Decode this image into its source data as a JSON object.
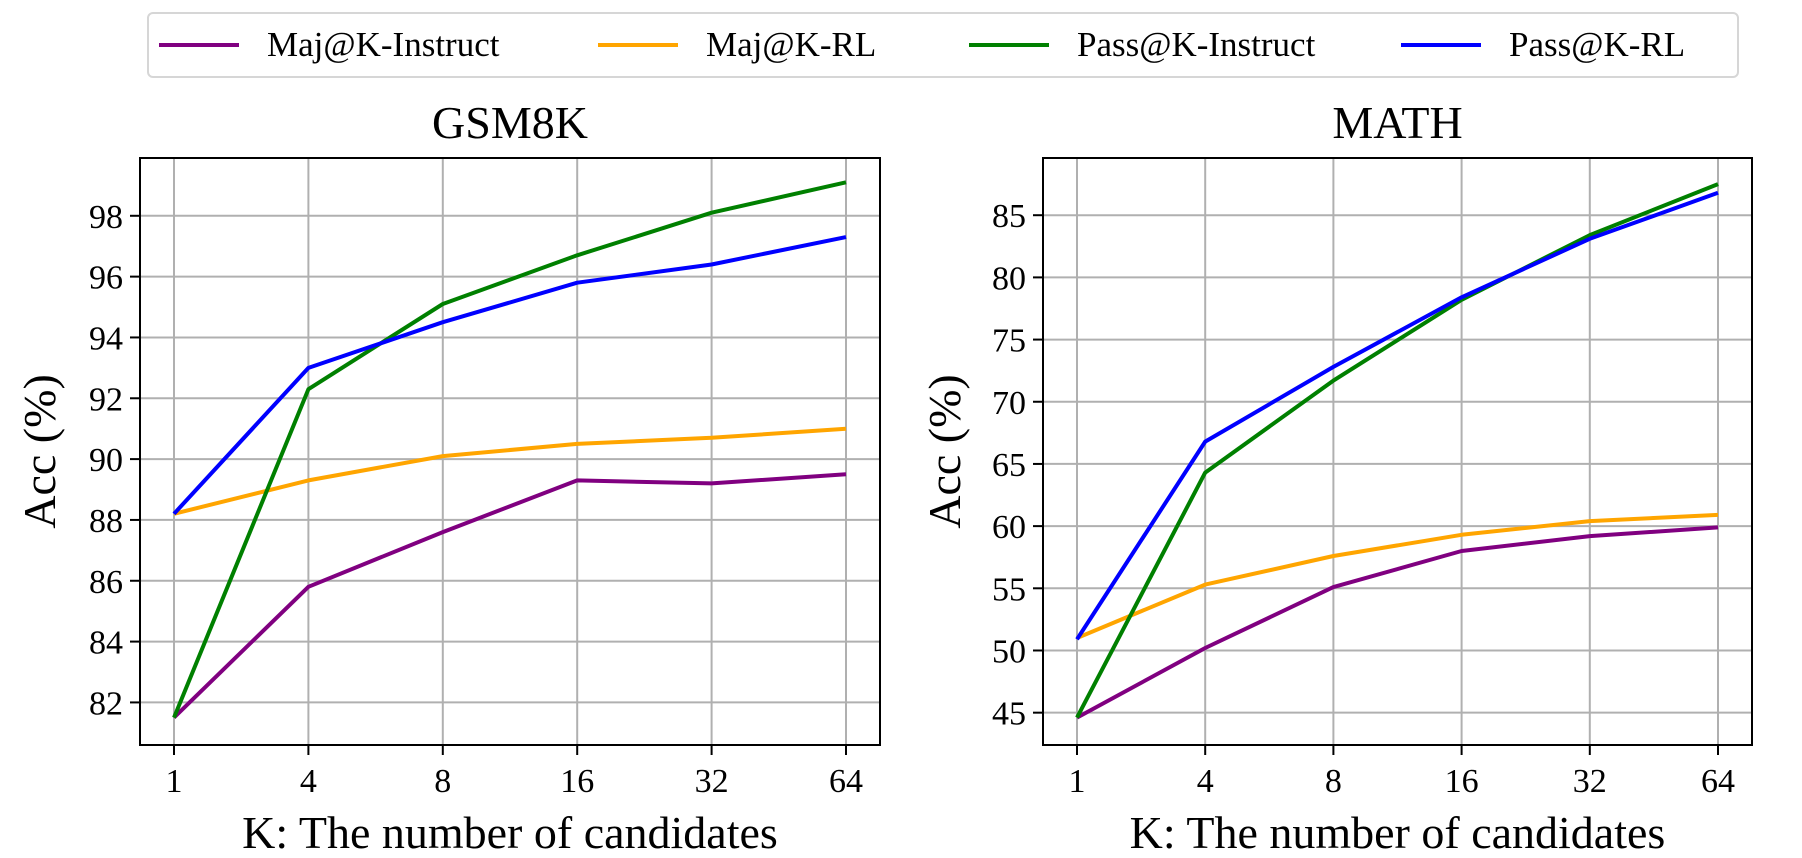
{
  "legend": [
    {
      "label": "Maj@K-Instruct",
      "color": "#800080"
    },
    {
      "label": "Maj@K-RL",
      "color": "#FFA500"
    },
    {
      "label": "Pass@K-Instruct",
      "color": "#008000"
    },
    {
      "label": "Pass@K-RL",
      "color": "#0000FF"
    }
  ],
  "chart_data": [
    {
      "type": "line",
      "title": "GSM8K",
      "xlabel": "K: The number of candidates",
      "ylabel": "Acc (%)",
      "categories": [
        "1",
        "4",
        "8",
        "16",
        "32",
        "64"
      ],
      "ylim": [
        80.6,
        99.9
      ],
      "yticks": [
        82,
        84,
        86,
        88,
        90,
        92,
        94,
        96,
        98
      ],
      "grid": true,
      "series": [
        {
          "name": "Maj@K-Instruct",
          "color": "#800080",
          "values": [
            81.5,
            85.8,
            87.6,
            89.3,
            89.2,
            89.5
          ]
        },
        {
          "name": "Maj@K-RL",
          "color": "#FFA500",
          "values": [
            88.2,
            89.3,
            90.1,
            90.5,
            90.7,
            91.0
          ]
        },
        {
          "name": "Pass@K-Instruct",
          "color": "#008000",
          "values": [
            81.5,
            92.3,
            95.1,
            96.7,
            98.1,
            99.1
          ]
        },
        {
          "name": "Pass@K-RL",
          "color": "#0000FF",
          "values": [
            88.2,
            93.0,
            94.5,
            95.8,
            96.4,
            97.3
          ]
        }
      ]
    },
    {
      "type": "line",
      "title": "MATH",
      "xlabel": "K: The number of candidates",
      "ylabel": "Acc (%)",
      "categories": [
        "1",
        "4",
        "8",
        "16",
        "32",
        "64"
      ],
      "ylim": [
        42.4,
        89.6
      ],
      "yticks": [
        45,
        50,
        55,
        60,
        65,
        70,
        75,
        80,
        85
      ],
      "grid": true,
      "series": [
        {
          "name": "Maj@K-Instruct",
          "color": "#800080",
          "values": [
            44.6,
            50.2,
            55.1,
            58.0,
            59.2,
            59.9
          ]
        },
        {
          "name": "Maj@K-RL",
          "color": "#FFA500",
          "values": [
            51.0,
            55.3,
            57.6,
            59.3,
            60.4,
            60.9
          ]
        },
        {
          "name": "Pass@K-Instruct",
          "color": "#008000",
          "values": [
            44.6,
            64.3,
            71.7,
            78.2,
            83.4,
            87.5
          ]
        },
        {
          "name": "Pass@K-RL",
          "color": "#0000FF",
          "values": [
            50.9,
            66.8,
            72.8,
            78.4,
            83.1,
            86.8
          ]
        }
      ]
    }
  ]
}
